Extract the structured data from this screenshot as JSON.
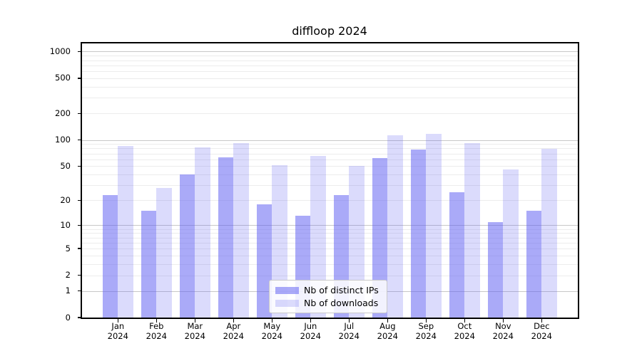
{
  "chart_data": {
    "type": "bar",
    "title": "diffloop 2024",
    "categories": [
      "Jan",
      "Feb",
      "Mar",
      "Apr",
      "May",
      "Jun",
      "Jul",
      "Aug",
      "Sep",
      "Oct",
      "Nov",
      "Dec"
    ],
    "category_year": "2024",
    "series": [
      {
        "name": "Nb of distinct IPs",
        "base_color": "#5c5cf2",
        "alpha": 0.52,
        "values": [
          23,
          15,
          40,
          63,
          18,
          13,
          23,
          62,
          77,
          25,
          11,
          15
        ]
      },
      {
        "name": "Nb of downloads",
        "base_color": "#5c5cf2",
        "alpha": 0.22,
        "values": [
          85,
          28,
          82,
          92,
          51,
          66,
          50,
          113,
          118,
          92,
          46,
          79
        ]
      }
    ],
    "y_scale": "log1p",
    "y_ticks": [
      0,
      1,
      2,
      5,
      10,
      20,
      50,
      100,
      200,
      500,
      1000
    ],
    "y_major_grid": [
      1,
      10,
      100,
      1000
    ],
    "ylim": [
      0,
      1200
    ],
    "xlabel": "",
    "ylabel": "",
    "grid": "on",
    "legend_position": "lower center"
  },
  "colors": {
    "bar_dark_rendered": "#aaaaf9",
    "bar_light_rendered": "#dbdbfc",
    "grid_major": "#c8c8c8",
    "grid_minor": "#ececec",
    "spine": "#000000",
    "legend_border": "#c9c9c9",
    "background": "#ffffff"
  }
}
